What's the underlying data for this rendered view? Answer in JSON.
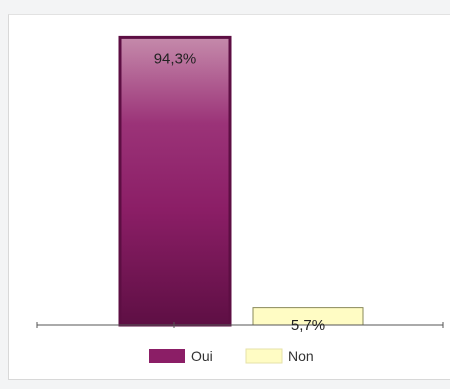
{
  "chart_data": {
    "type": "bar",
    "categories": [
      "Oui",
      "Non"
    ],
    "values": [
      94.3,
      5.7
    ],
    "data_labels": [
      "94,3%",
      "5,7%"
    ],
    "ylim": [
      0,
      100
    ],
    "grid": false,
    "legend_position": "bottom",
    "legend": [
      {
        "label": "Oui",
        "color": "#8b1e66"
      },
      {
        "label": "Non",
        "color": "#fffcc4"
      }
    ],
    "colors": {
      "oui_fill": "#8b1e66",
      "oui_border": "#5d0e43",
      "non_fill": "#fffcc4",
      "non_border": "#8a8a5a",
      "axis": "#555555"
    }
  }
}
